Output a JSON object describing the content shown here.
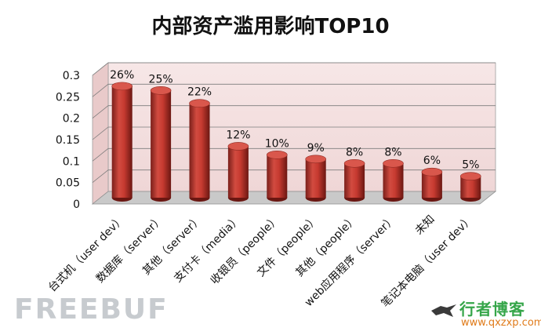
{
  "chart_data": {
    "type": "bar",
    "title": "内部资产滥用影响TOP10",
    "categories": [
      "台式机（user dev）",
      "数据库（server）",
      "其他（server）",
      "支付卡（media）",
      "收银员（people）",
      "文件（people）",
      "其他（people）",
      "web应用程序（server）",
      "未知",
      "笔记本电脑（user dev）"
    ],
    "values": [
      0.26,
      0.25,
      0.22,
      0.12,
      0.1,
      0.09,
      0.08,
      0.08,
      0.06,
      0.05
    ],
    "data_labels": [
      "26%",
      "25%",
      "22%",
      "12%",
      "10%",
      "9%",
      "8%",
      "8%",
      "6%",
      "5%"
    ],
    "ylim": [
      0,
      0.3
    ],
    "yticks": [
      "0",
      "0.05",
      "0.1",
      "0.15",
      "0.2",
      "0.25",
      "0.3"
    ],
    "grid": true,
    "bar_color": "#c0392b",
    "wall_color": "#f2dcdc"
  },
  "watermark": "FREEBUF",
  "logo": {
    "name": "行者博客",
    "url": "www.qxzxp.com"
  }
}
